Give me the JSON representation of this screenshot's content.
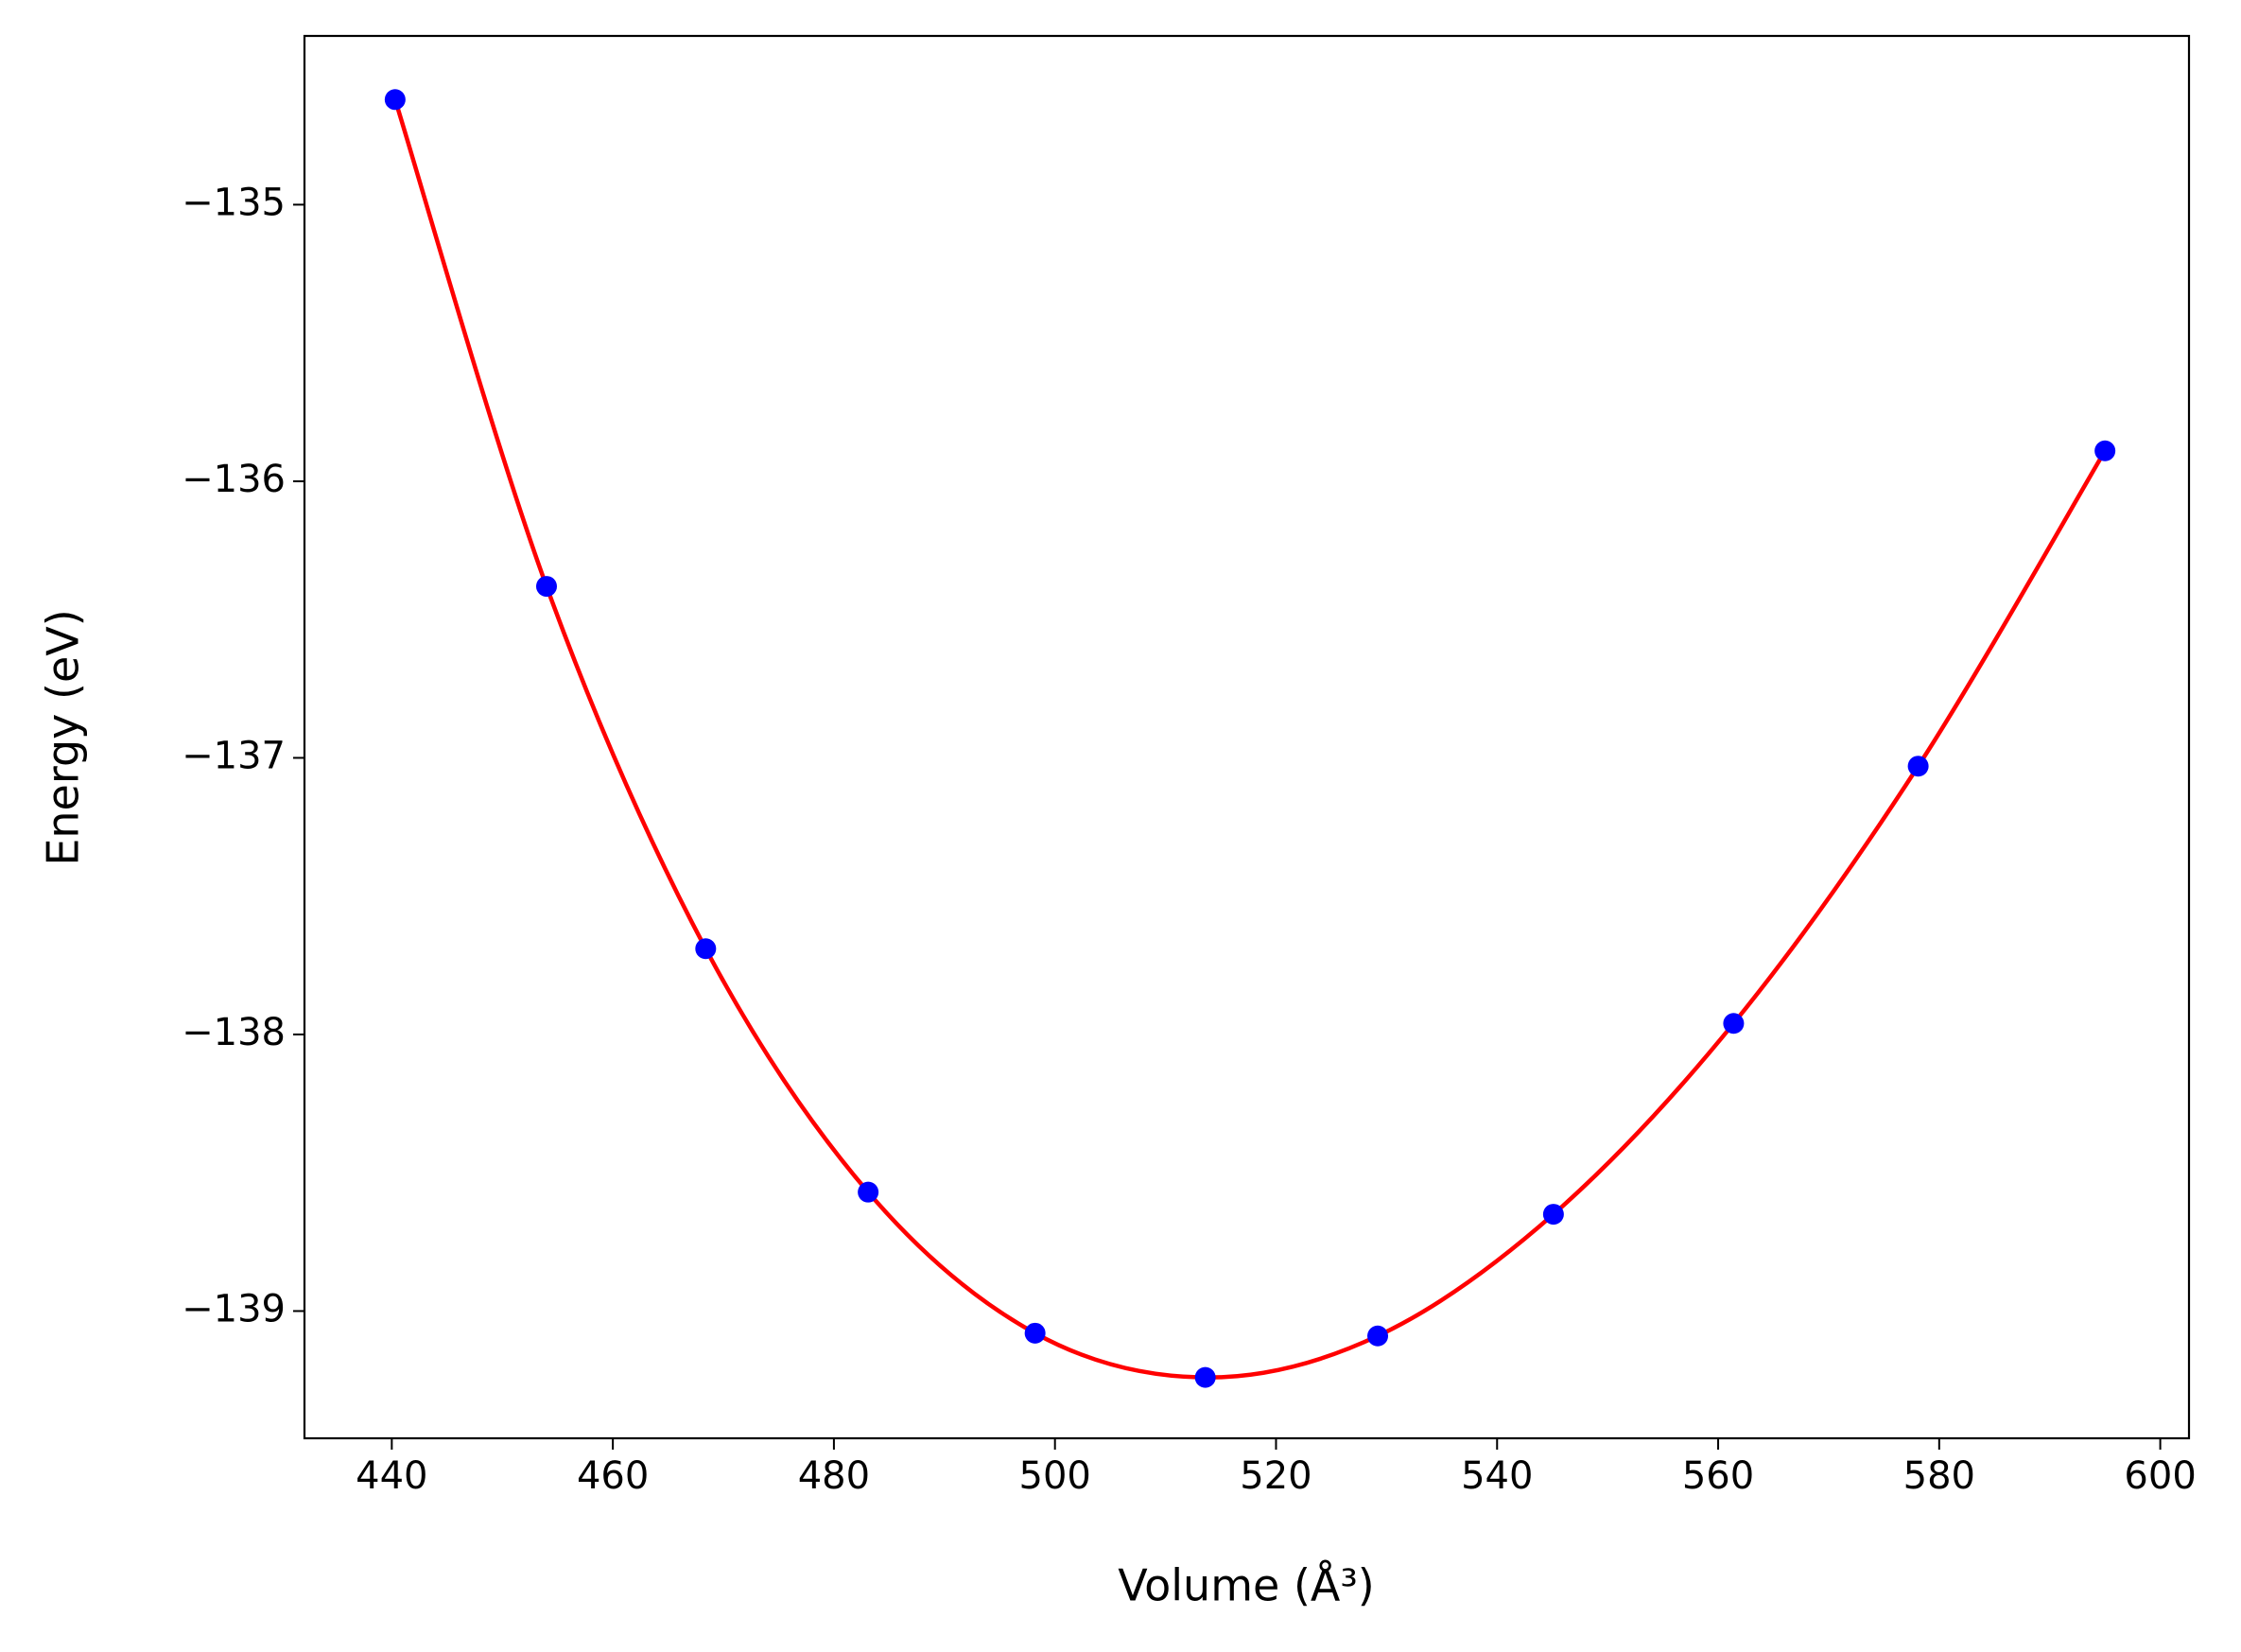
{
  "chart_data": {
    "type": "scatter-fit",
    "xlabel": "Volume (Å³)",
    "ylabel": "Energy (eV)",
    "xlim": [
      432.1,
      602.6
    ],
    "ylim": [
      -139.46,
      -134.39
    ],
    "xticks": [
      440,
      460,
      480,
      500,
      520,
      540,
      560,
      580,
      600
    ],
    "yticks": [
      {
        "value": -135,
        "label": "−135"
      },
      {
        "value": -136,
        "label": "−136"
      },
      {
        "value": -137,
        "label": "−137"
      },
      {
        "value": -138,
        "label": "−138"
      },
      {
        "value": -139,
        "label": "−139"
      }
    ],
    "series": [
      {
        "kind": "line",
        "color": "#ff0000",
        "x": [
          440.3,
          454.0,
          468.4,
          483.1,
          498.2,
          513.6,
          529.2,
          545.1,
          561.4,
          578.1,
          595.0
        ],
        "values": [
          -134.62,
          -136.38,
          -137.69,
          -138.57,
          -139.08,
          -139.24,
          -139.09,
          -138.65,
          -137.96,
          -137.03,
          -135.89
        ]
      },
      {
        "kind": "points",
        "color": "#0000ff",
        "x": [
          440.3,
          454.0,
          468.4,
          483.1,
          498.2,
          513.6,
          529.2,
          545.1,
          561.4,
          578.1,
          595.0
        ],
        "values": [
          -134.62,
          -136.38,
          -137.69,
          -138.57,
          -139.08,
          -139.24,
          -139.09,
          -138.65,
          -137.96,
          -137.03,
          -135.89
        ]
      }
    ]
  }
}
